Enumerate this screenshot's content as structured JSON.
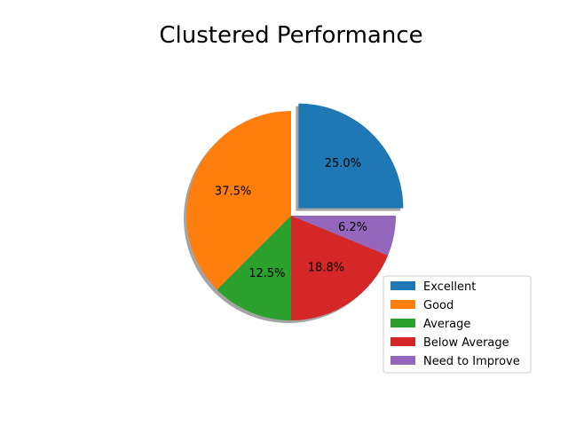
{
  "chart_data": {
    "type": "pie",
    "title": "Clustered Performance",
    "categories": [
      "Excellent",
      "Good",
      "Average",
      "Below Average",
      "Need to Improve"
    ],
    "values": [
      25.0,
      37.5,
      12.5,
      18.8,
      6.2
    ],
    "labels": [
      "25.0%",
      "37.5%",
      "12.5%",
      "18.8%",
      "6.2%"
    ],
    "colors": [
      "#1f77b4",
      "#ff7f0e",
      "#2ca02c",
      "#d62728",
      "#9467bd"
    ],
    "explode": [
      0.1,
      0,
      0,
      0,
      0
    ],
    "start_angle_deg": 0,
    "direction": "counterclockwise",
    "shadow": true,
    "legend": {
      "placement": "lower-right",
      "entries": [
        "Excellent",
        "Good",
        "Average",
        "Below Average",
        "Need to Improve"
      ]
    }
  }
}
